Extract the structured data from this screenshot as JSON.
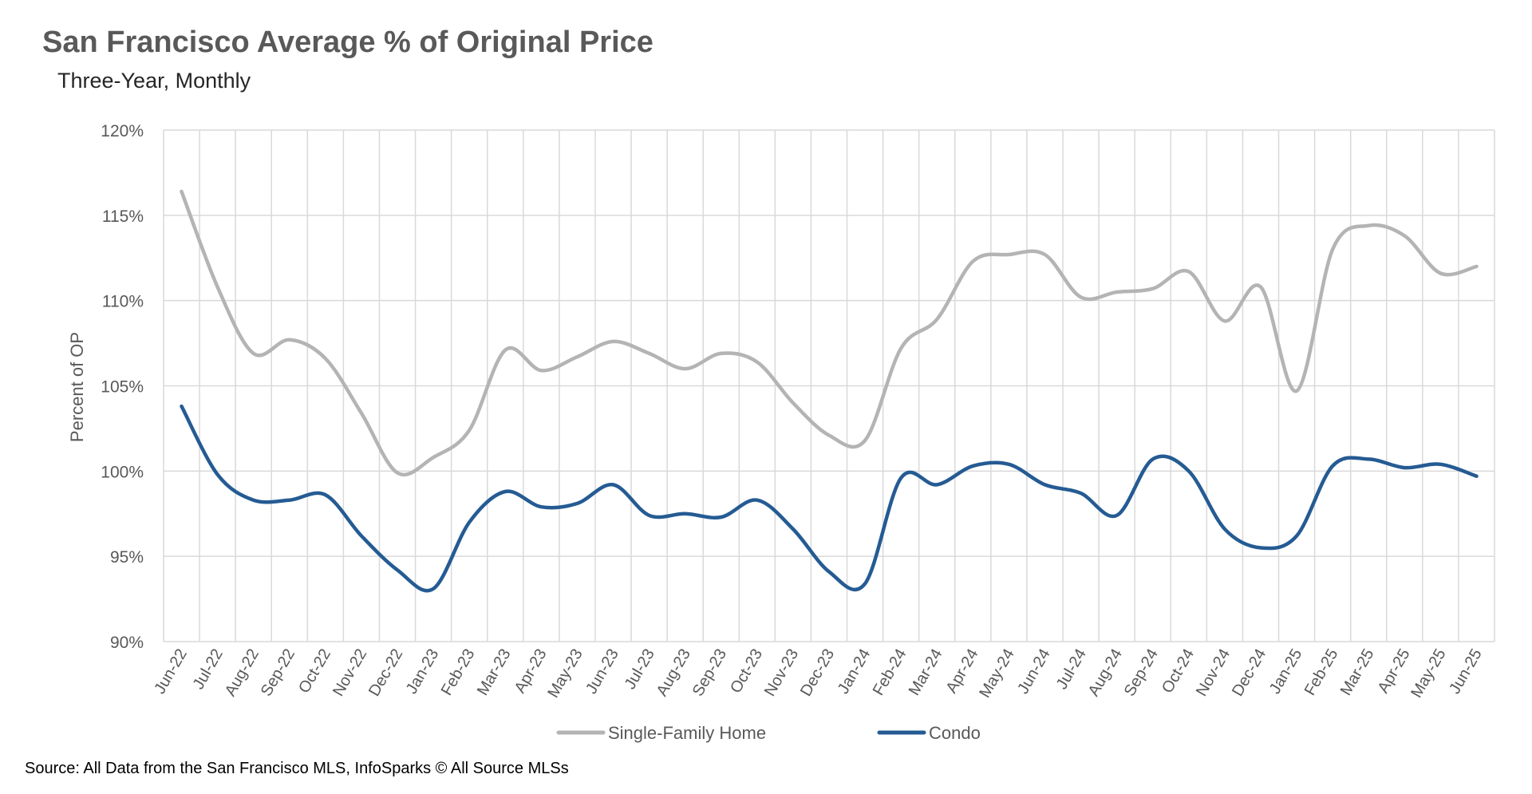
{
  "colors": {
    "single_family": "#b4b4b4",
    "condo": "#255b93",
    "grid": "#d9d9d9",
    "tick_text": "#595959"
  },
  "chart_data": {
    "type": "line",
    "title": "San Francisco Average % of Original Price",
    "subtitle": "Three-Year, Monthly",
    "xlabel": "",
    "ylabel": "Percent of OP",
    "ylim": [
      90,
      120
    ],
    "yticks": [
      90,
      95,
      100,
      105,
      110,
      115,
      120
    ],
    "ytick_labels": [
      "90%",
      "95%",
      "100%",
      "105%",
      "110%",
      "115%",
      "120%"
    ],
    "grid": true,
    "legend_position": "bottom",
    "categories": [
      "Jun-22",
      "Jul-22",
      "Aug-22",
      "Sep-22",
      "Oct-22",
      "Nov-22",
      "Dec-22",
      "Jan-23",
      "Feb-23",
      "Mar-23",
      "Apr-23",
      "May-23",
      "Jun-23",
      "Jul-23",
      "Aug-23",
      "Sep-23",
      "Oct-23",
      "Nov-23",
      "Dec-23",
      "Jan-24",
      "Feb-24",
      "Mar-24",
      "Apr-24",
      "May-24",
      "Jun-24",
      "Jul-24",
      "Aug-24",
      "Sep-24",
      "Oct-24",
      "Nov-24",
      "Dec-24",
      "Jan-25",
      "Feb-25",
      "Mar-25",
      "Apr-25",
      "May-25",
      "Jun-25"
    ],
    "series": [
      {
        "name": "Single-Family Home",
        "values": [
          116.4,
          110.8,
          106.9,
          107.7,
          106.6,
          103.4,
          99.9,
          100.8,
          102.4,
          107.1,
          105.9,
          106.7,
          107.6,
          106.9,
          106.0,
          106.9,
          106.4,
          104.0,
          102.1,
          101.8,
          107.2,
          108.9,
          112.3,
          112.7,
          112.7,
          110.2,
          110.5,
          110.7,
          111.7,
          108.8,
          110.8,
          104.7,
          113.0,
          114.4,
          113.8,
          111.6,
          112.0
        ]
      },
      {
        "name": "Condo",
        "values": [
          103.8,
          99.8,
          98.3,
          98.3,
          98.6,
          96.2,
          94.2,
          93.1,
          97.0,
          98.8,
          97.9,
          98.1,
          99.2,
          97.4,
          97.5,
          97.3,
          98.3,
          96.6,
          94.1,
          93.4,
          99.6,
          99.2,
          100.3,
          100.4,
          99.2,
          98.7,
          97.4,
          100.7,
          100.0,
          96.6,
          95.5,
          96.2,
          100.3,
          100.7,
          100.2,
          100.4,
          99.7
        ]
      }
    ]
  },
  "source_text": "Source: All Data from the San Francisco MLS, InfoSparks © All Source MLSs"
}
